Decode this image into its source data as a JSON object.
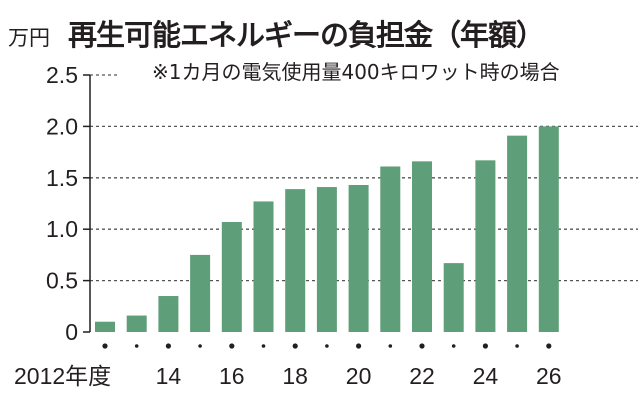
{
  "chart_data": {
    "type": "bar",
    "title": "再生可能エネルギーの負担金（年額）",
    "subtitle": "※1カ月の電気使用量400キロワット時の場合",
    "ylabel": "万円",
    "xlabel": "",
    "ylim": [
      0,
      2.5
    ],
    "yticks": [
      "0",
      "0.5",
      "1.0",
      "1.5",
      "2.0",
      "2.5"
    ],
    "categories": [
      2012,
      2013,
      2014,
      2015,
      2016,
      2017,
      2018,
      2019,
      2020,
      2021,
      2022,
      2023,
      2024,
      2025,
      2026
    ],
    "xtick_labels": {
      "2012": "2012年度",
      "2014": "14",
      "2016": "16",
      "2018": "18",
      "2020": "20",
      "2022": "22",
      "2024": "24",
      "2026": "26"
    },
    "values": [
      0.1,
      0.16,
      0.35,
      0.75,
      1.07,
      1.27,
      1.39,
      1.41,
      1.43,
      1.61,
      1.66,
      0.67,
      1.67,
      1.91,
      2.0
    ],
    "grid": true,
    "bar_color": "#5e9e78"
  }
}
